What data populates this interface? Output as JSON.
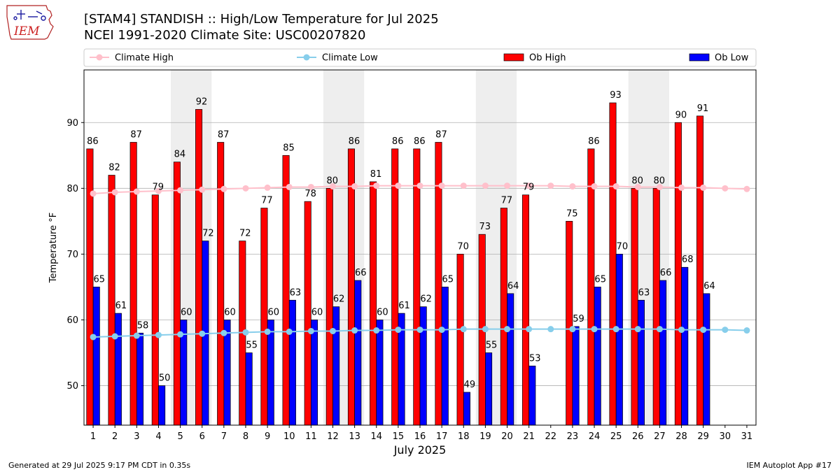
{
  "title_line1": "[STAM4] STANDISH :: High/Low Temperature for Jul 2025",
  "title_line2": "NCEI 1991-2020 Climate Site: USC00207820",
  "logo_text": "IEM",
  "footer_left": "Generated at 29 Jul 2025 9:17 PM CDT in 0.35s",
  "footer_right": "IEM Autoplot App #17",
  "colors": {
    "ob_high": "#ff0000",
    "ob_low": "#0000ff",
    "climate_high": "#ffc0cb",
    "climate_low": "#87ceeb",
    "weekend_shade": "#eeeeee",
    "grid": "#b0b0b0"
  },
  "chart_data": {
    "type": "bar",
    "xlabel": "July 2025",
    "ylabel": "Temperature °F",
    "ylim": [
      44,
      98
    ],
    "yticks": [
      50,
      60,
      70,
      80,
      90
    ],
    "grid": "horizontal",
    "legend_location": "top",
    "days": [
      1,
      2,
      3,
      4,
      5,
      6,
      7,
      8,
      9,
      10,
      11,
      12,
      13,
      14,
      15,
      16,
      17,
      18,
      19,
      20,
      21,
      22,
      23,
      24,
      25,
      26,
      27,
      28,
      29,
      30,
      31
    ],
    "weekend_spans": [
      [
        5,
        6
      ],
      [
        12,
        13
      ],
      [
        19,
        20
      ],
      [
        26,
        27
      ]
    ],
    "legend": [
      "Climate High",
      "Climate Low",
      "Ob High",
      "Ob Low"
    ],
    "series": [
      {
        "name": "Ob High",
        "kind": "bar",
        "values": [
          86,
          82,
          87,
          79,
          84,
          92,
          87,
          72,
          77,
          85,
          78,
          80,
          86,
          81,
          86,
          86,
          87,
          70,
          73,
          77,
          79,
          null,
          75,
          86,
          93,
          80,
          80,
          90,
          91,
          null,
          null
        ]
      },
      {
        "name": "Ob Low",
        "kind": "bar",
        "values": [
          65,
          61,
          58,
          50,
          60,
          72,
          60,
          55,
          60,
          63,
          60,
          62,
          66,
          60,
          61,
          62,
          65,
          49,
          55,
          64,
          53,
          null,
          59,
          65,
          70,
          63,
          66,
          68,
          64,
          null,
          null
        ]
      },
      {
        "name": "Climate High",
        "kind": "line",
        "values": [
          79.2,
          79.4,
          79.5,
          79.6,
          79.7,
          79.8,
          79.9,
          80.0,
          80.1,
          80.2,
          80.2,
          80.3,
          80.3,
          80.4,
          80.4,
          80.4,
          80.4,
          80.4,
          80.4,
          80.4,
          80.4,
          80.4,
          80.3,
          80.3,
          80.3,
          80.2,
          80.2,
          80.1,
          80.1,
          80.0,
          79.9
        ]
      },
      {
        "name": "Climate Low",
        "kind": "line",
        "values": [
          57.4,
          57.5,
          57.6,
          57.7,
          57.8,
          57.9,
          58.0,
          58.1,
          58.2,
          58.2,
          58.3,
          58.3,
          58.4,
          58.4,
          58.5,
          58.5,
          58.5,
          58.6,
          58.6,
          58.6,
          58.6,
          58.6,
          58.6,
          58.6,
          58.6,
          58.6,
          58.6,
          58.5,
          58.5,
          58.5,
          58.4
        ]
      }
    ]
  }
}
